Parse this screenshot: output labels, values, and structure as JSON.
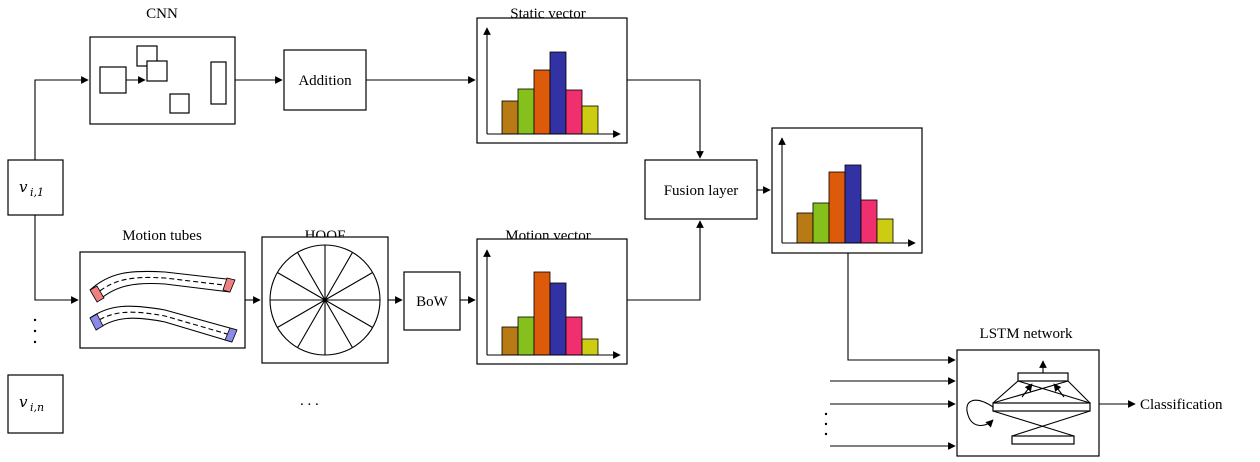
{
  "labels": {
    "cnn": "CNN",
    "addition": "Addition",
    "static_vector": "Static vector",
    "motion_tubes": "Motion tubes",
    "hoof": "HOOF",
    "bow": "BoW",
    "motion_vector": "Motion vector",
    "fusion_layer": "Fusion layer",
    "lstm_network": "LSTM network",
    "classification": "Classification",
    "ellipsis": ". . .",
    "input_first_var": "v",
    "input_first_sub": "i,1",
    "input_last_var": "v",
    "input_last_sub": "i,n"
  },
  "histogram_colors": [
    "#b87a14",
    "#85c01d",
    "#dc5a0a",
    "#3232a4",
    "#f0306e",
    "#cccc12"
  ],
  "histograms": {
    "static": [
      0.33,
      0.45,
      0.64,
      0.82,
      0.44,
      0.28
    ],
    "motion": [
      0.28,
      0.38,
      0.83,
      0.72,
      0.38,
      0.16
    ],
    "fused": [
      0.3,
      0.4,
      0.71,
      0.78,
      0.43,
      0.24
    ]
  },
  "tube_colors": {
    "upper": "#f08080",
    "lower": "#8a8ae8"
  }
}
